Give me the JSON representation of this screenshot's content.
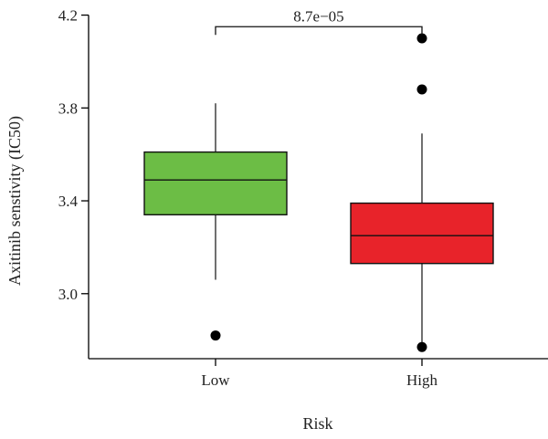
{
  "chart_data": {
    "type": "boxplot",
    "xlabel": "Risk",
    "ylabel": "Axitinib senstivity (IC50)",
    "ylim": [
      2.72,
      4.21
    ],
    "yticks": [
      3.0,
      3.4,
      3.8,
      4.2
    ],
    "ytick_labels": [
      "3.0",
      "3.4",
      "3.8",
      "4.2"
    ],
    "categories": [
      "Low",
      "High"
    ],
    "boxes": [
      {
        "name": "Low",
        "color": "#6cbd45",
        "q1": 3.34,
        "median": 3.49,
        "q3": 3.61,
        "whisker_low": 3.06,
        "whisker_high": 3.82,
        "outliers": [
          2.82
        ]
      },
      {
        "name": "High",
        "color": "#e8232a",
        "q1": 3.13,
        "median": 3.25,
        "q3": 3.39,
        "whisker_low": 2.77,
        "whisker_high": 3.69,
        "outliers": [
          4.1,
          3.88,
          2.77
        ]
      }
    ],
    "annotation": {
      "text": "8.7e−05",
      "y": 4.15
    }
  }
}
